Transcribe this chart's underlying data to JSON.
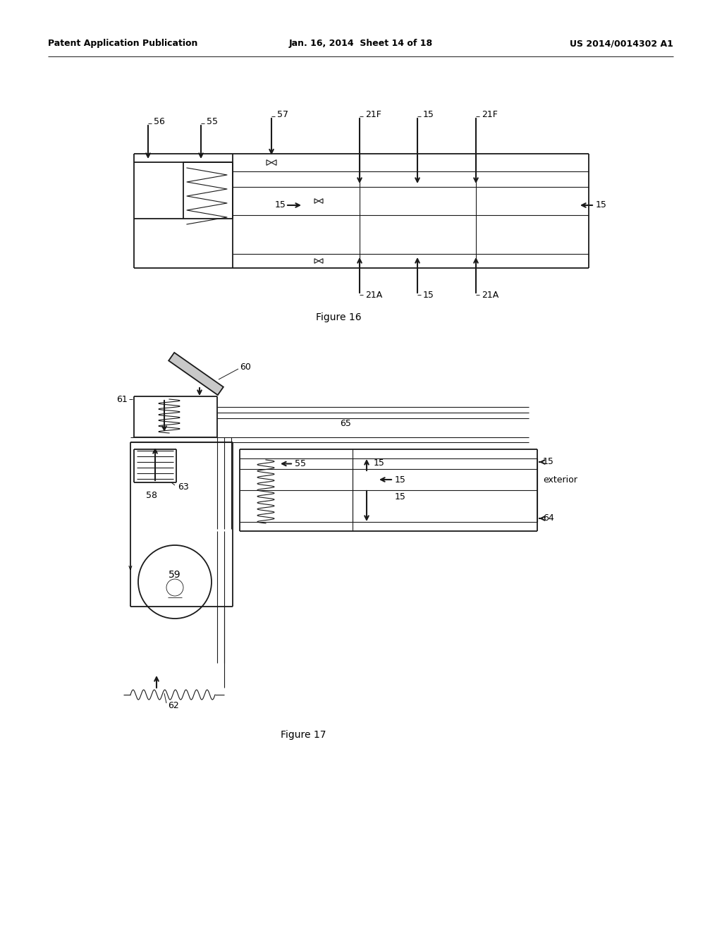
{
  "bg_color": "#ffffff",
  "header_left": "Patent Application Publication",
  "header_mid": "Jan. 16, 2014  Sheet 14 of 18",
  "header_right": "US 2014/0014302 A1",
  "fig16_caption": "Figure 16",
  "fig17_caption": "Figure 17",
  "line_color": "#1a1a1a",
  "text_color": "#000000",
  "lw_main": 1.3,
  "lw_thin": 0.8,
  "lw_arrow": 1.5
}
